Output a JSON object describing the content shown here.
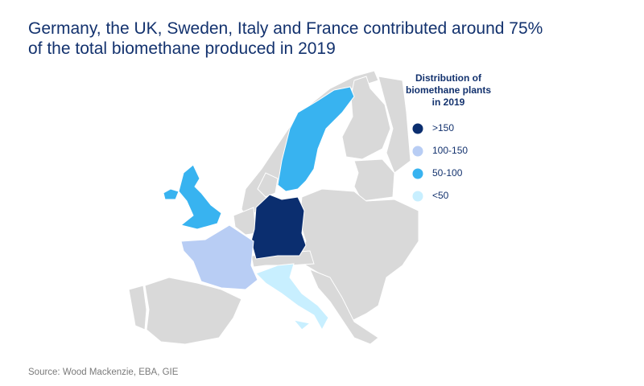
{
  "title_lines": [
    "Germany, the UK, Sweden, Italy and France contributed around 75%",
    "of the total biomethane produced in 2019"
  ],
  "legend": {
    "title_lines": [
      "Distribution of",
      "biomethane plants",
      "in 2019"
    ],
    "items": [
      {
        "label": ">150",
        "color": "#0b2e6f"
      },
      {
        "label": "100-150",
        "color": "#b8cdf4"
      },
      {
        "label": "50-100",
        "color": "#38b3f0"
      },
      {
        "label": "<50",
        "color": "#c8efff"
      }
    ]
  },
  "source": "Source: Wood Mackenzie, EBA, GIE"
}
